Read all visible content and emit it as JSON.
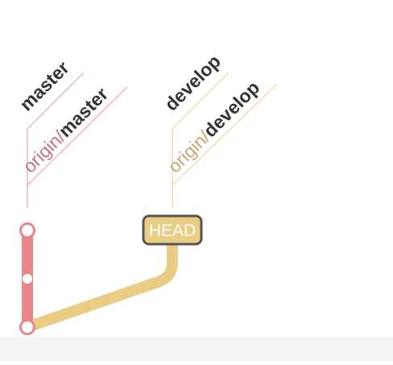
{
  "colors": {
    "master": "#e8868a",
    "master_label_line": "#f0b8bb",
    "develop": "#e9cd85",
    "develop_label_line": "#f0dcae",
    "text_dark": "#333333",
    "head_fill": "#e9cd85",
    "head_border": "#555555",
    "head_text": "#ffffff",
    "floor": "#f5f5f5"
  },
  "branches": {
    "master": {
      "label": "master"
    },
    "origin_master": {
      "prefix": "origin/",
      "name": "master"
    },
    "develop": {
      "label": "develop"
    },
    "origin_develop": {
      "prefix": "origin/",
      "name": "develop"
    }
  },
  "head": {
    "label": "HEAD"
  }
}
